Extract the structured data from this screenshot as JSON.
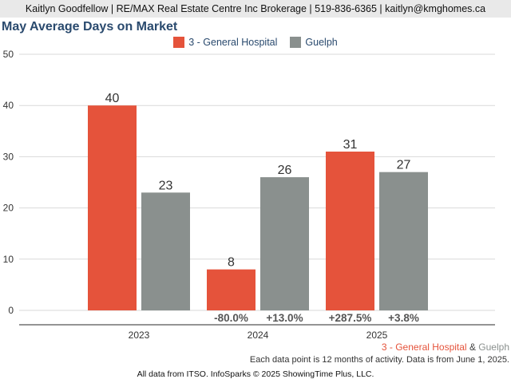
{
  "header": {
    "contact": "Kaitlyn Goodfellow | RE/MAX Real Estate Centre Inc Brokerage | 519-836-6365 | kaitlyn@kmghomes.ca"
  },
  "legend": {
    "series_a": "3 - General Hospital",
    "series_b": "Guelph"
  },
  "footer": {
    "series_a": "3 - General Hospital",
    "amp": "&",
    "series_b": "Guelph",
    "note": "Each data point is 12 months of activity. Data is from June 1, 2025.",
    "credit": "All data from ITSO. InfoSparks © 2025 ShowingTime Plus, LLC."
  },
  "colors": {
    "series_a": "#e5533b",
    "series_b": "#8a908e",
    "title": "#2a4a6e",
    "grid": "#d9d9d9",
    "axis": "#555555"
  },
  "chart_data": {
    "type": "bar",
    "title": "May Average Days on Market",
    "categories": [
      "2023",
      "2024",
      "2025"
    ],
    "series": [
      {
        "name": "3 - General Hospital",
        "values": [
          40,
          8,
          31
        ]
      },
      {
        "name": "Guelph",
        "values": [
          23,
          26,
          27
        ]
      }
    ],
    "changes": [
      {
        "category": "2024",
        "series_a": "-80.0%",
        "series_b": "+13.0%"
      },
      {
        "category": "2025",
        "series_a": "+287.5%",
        "series_b": "+3.8%"
      }
    ],
    "yticks": [
      0,
      10,
      20,
      30,
      40,
      50
    ],
    "ylim": [
      0,
      50
    ],
    "xlabel": "",
    "ylabel": "",
    "grid": true,
    "legend": "top-center"
  }
}
